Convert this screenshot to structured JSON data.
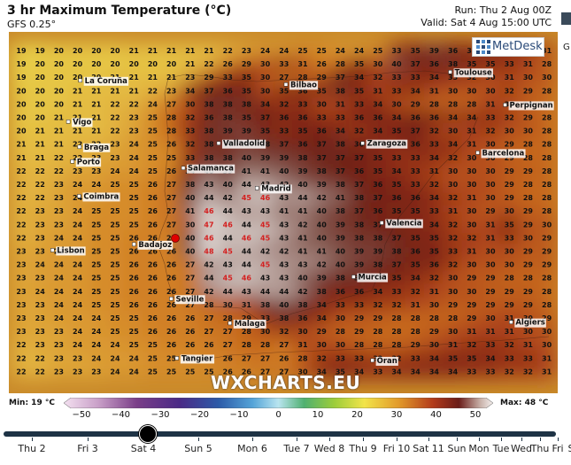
{
  "header": {
    "title": "3 hr Maximum Temperature (°C)",
    "model": "GFS 0.25°",
    "run": "Run: Thu 2 Aug 00Z",
    "valid": "Valid: Sat 4 Aug 15:00 UTC",
    "side_label": "G"
  },
  "logo": {
    "text": "MetDesk",
    "icon": "metdesk-grid-icon"
  },
  "watermark": "WXCHARTS.EU",
  "legend": {
    "min_label": "Min: 19 °C",
    "max_label": "Max: 48 °C",
    "ticks": [
      "−50",
      "−40",
      "−30",
      "−20",
      "−10",
      "0",
      "10",
      "20",
      "30",
      "40",
      "50"
    ],
    "range": [
      -50,
      50
    ]
  },
  "timeline": {
    "days": [
      "Thu 2",
      "Fri 3",
      "Sat 4",
      "Sun 5",
      "Mon 6",
      "Tue 7",
      "Wed 8",
      "Thu 9",
      "Fri 10",
      "Sat 11",
      "Sun",
      "Mon",
      "Tue",
      "Wed",
      "Thu",
      "Fri",
      "S"
    ],
    "selected": "Sat 4"
  },
  "cities": [
    {
      "name": "La Coruña",
      "lon": -8.4,
      "lat": 43.37
    },
    {
      "name": "Bilbao",
      "lon": -2.93,
      "lat": 43.26
    },
    {
      "name": "Toulouse",
      "lon": 1.44,
      "lat": 43.6
    },
    {
      "name": "Vigo",
      "lon": -8.72,
      "lat": 42.24
    },
    {
      "name": "Perpignan",
      "lon": 2.9,
      "lat": 42.7
    },
    {
      "name": "Braga",
      "lon": -8.42,
      "lat": 41.55
    },
    {
      "name": "Valladolid",
      "lon": -4.72,
      "lat": 41.65
    },
    {
      "name": "Zaragoza",
      "lon": -0.89,
      "lat": 41.65
    },
    {
      "name": "Barcelona",
      "lon": 2.17,
      "lat": 41.39
    },
    {
      "name": "Porto",
      "lon": -8.61,
      "lat": 41.15
    },
    {
      "name": "Salamanca",
      "lon": -5.66,
      "lat": 40.97
    },
    {
      "name": "Madrid",
      "lon": -3.7,
      "lat": 40.42
    },
    {
      "name": "Coimbra",
      "lon": -8.43,
      "lat": 40.2
    },
    {
      "name": "Valencia",
      "lon": -0.38,
      "lat": 39.47
    },
    {
      "name": "Badajoz",
      "lon": -6.97,
      "lat": 38.88
    },
    {
      "name": "Lisbon",
      "lon": -9.14,
      "lat": 38.72
    },
    {
      "name": "Murcia",
      "lon": -1.13,
      "lat": 37.99
    },
    {
      "name": "Seville",
      "lon": -5.98,
      "lat": 37.39
    },
    {
      "name": "Algiers",
      "lon": 3.06,
      "lat": 36.75
    },
    {
      "name": "Malaga",
      "lon": -4.42,
      "lat": 36.72
    },
    {
      "name": "Oran",
      "lon": -0.63,
      "lat": 35.7
    },
    {
      "name": "Tangier",
      "lon": -5.83,
      "lat": 35.76
    }
  ],
  "grid": {
    "rows": [
      [
        19,
        19,
        20,
        20,
        20,
        20,
        21,
        21,
        21,
        21,
        21,
        22,
        23,
        24,
        24,
        25,
        25,
        24,
        24,
        25,
        33,
        35,
        39,
        36,
        34,
        34,
        34,
        33,
        31
      ],
      [
        19,
        20,
        20,
        20,
        20,
        20,
        20,
        20,
        20,
        21,
        22,
        26,
        29,
        30,
        33,
        31,
        26,
        28,
        35,
        30,
        40,
        37,
        36,
        38,
        35,
        35,
        33,
        31,
        28
      ],
      [
        19,
        20,
        20,
        20,
        20,
        21,
        21,
        21,
        21,
        23,
        29,
        33,
        35,
        30,
        27,
        28,
        29,
        37,
        34,
        32,
        33,
        33,
        34,
        33,
        32,
        30,
        31,
        30,
        30
      ],
      [
        20,
        20,
        20,
        21,
        21,
        21,
        21,
        22,
        23,
        34,
        37,
        36,
        35,
        30,
        35,
        36,
        35,
        38,
        35,
        31,
        33,
        34,
        31,
        30,
        30,
        30,
        32,
        29,
        28
      ],
      [
        20,
        20,
        20,
        21,
        21,
        22,
        22,
        24,
        27,
        30,
        38,
        38,
        38,
        34,
        32,
        33,
        30,
        31,
        33,
        34,
        30,
        29,
        28,
        28,
        28,
        31,
        30,
        29,
        28
      ],
      [
        20,
        20,
        21,
        21,
        21,
        22,
        23,
        25,
        28,
        32,
        36,
        38,
        35,
        37,
        36,
        36,
        33,
        33,
        36,
        36,
        34,
        36,
        36,
        34,
        34,
        33,
        32,
        29,
        28
      ],
      [
        20,
        21,
        21,
        21,
        21,
        22,
        23,
        25,
        28,
        33,
        38,
        39,
        39,
        35,
        33,
        35,
        36,
        34,
        32,
        34,
        35,
        37,
        32,
        30,
        31,
        32,
        30,
        30,
        28
      ],
      [
        21,
        21,
        21,
        22,
        22,
        23,
        24,
        25,
        26,
        32,
        38,
        36,
        39,
        38,
        37,
        36,
        37,
        38,
        36,
        35,
        34,
        36,
        33,
        34,
        31,
        30,
        29,
        28,
        28
      ],
      [
        21,
        21,
        22,
        22,
        23,
        23,
        24,
        25,
        25,
        33,
        38,
        38,
        40,
        39,
        39,
        38,
        37,
        37,
        37,
        35,
        33,
        33,
        34,
        32,
        30,
        30,
        29,
        28,
        28
      ],
      [
        22,
        22,
        22,
        23,
        23,
        24,
        24,
        25,
        26,
        34,
        40,
        39,
        41,
        41,
        40,
        39,
        38,
        37,
        36,
        35,
        34,
        33,
        31,
        30,
        30,
        30,
        29,
        29,
        28
      ],
      [
        22,
        22,
        23,
        24,
        24,
        25,
        25,
        26,
        27,
        38,
        43,
        40,
        44,
        43,
        42,
        40,
        39,
        38,
        37,
        36,
        35,
        33,
        32,
        30,
        30,
        30,
        29,
        28,
        28
      ],
      [
        22,
        22,
        23,
        24,
        24,
        25,
        25,
        26,
        27,
        40,
        44,
        42,
        45,
        46,
        43,
        44,
        42,
        41,
        38,
        37,
        36,
        36,
        34,
        32,
        31,
        30,
        29,
        28,
        28
      ],
      [
        22,
        23,
        23,
        24,
        25,
        25,
        25,
        26,
        27,
        41,
        46,
        44,
        43,
        43,
        41,
        41,
        40,
        38,
        37,
        36,
        35,
        35,
        33,
        31,
        30,
        29,
        30,
        29,
        28
      ],
      [
        22,
        23,
        23,
        24,
        25,
        25,
        25,
        26,
        27,
        30,
        47,
        46,
        44,
        45,
        43,
        42,
        40,
        39,
        38,
        37,
        36,
        35,
        34,
        32,
        30,
        31,
        35,
        29,
        30
      ],
      [
        22,
        23,
        24,
        24,
        25,
        25,
        26,
        26,
        26,
        40,
        46,
        44,
        46,
        45,
        43,
        41,
        40,
        39,
        38,
        38,
        37,
        35,
        35,
        32,
        32,
        31,
        33,
        30,
        29
      ],
      [
        23,
        23,
        24,
        24,
        25,
        25,
        26,
        26,
        26,
        40,
        48,
        45,
        44,
        42,
        42,
        41,
        41,
        40,
        39,
        39,
        38,
        36,
        35,
        33,
        31,
        30,
        30,
        29,
        29
      ],
      [
        23,
        24,
        24,
        24,
        25,
        25,
        26,
        26,
        26,
        27,
        42,
        43,
        44,
        45,
        43,
        43,
        42,
        40,
        39,
        38,
        37,
        35,
        36,
        32,
        30,
        30,
        30,
        29,
        29
      ],
      [
        23,
        23,
        24,
        24,
        25,
        25,
        26,
        26,
        26,
        27,
        44,
        45,
        46,
        43,
        43,
        40,
        39,
        38,
        38,
        36,
        35,
        34,
        32,
        30,
        29,
        29,
        28,
        28,
        28
      ],
      [
        23,
        24,
        24,
        24,
        25,
        25,
        26,
        26,
        26,
        27,
        42,
        44,
        43,
        44,
        44,
        42,
        38,
        36,
        36,
        34,
        33,
        32,
        31,
        30,
        30,
        29,
        29,
        29,
        28
      ],
      [
        23,
        23,
        24,
        24,
        25,
        25,
        26,
        26,
        26,
        27,
        28,
        30,
        31,
        38,
        40,
        38,
        34,
        33,
        33,
        32,
        32,
        31,
        30,
        29,
        29,
        29,
        29,
        29,
        28
      ],
      [
        23,
        23,
        24,
        24,
        24,
        25,
        25,
        26,
        26,
        26,
        27,
        28,
        29,
        33,
        38,
        36,
        34,
        30,
        29,
        29,
        28,
        28,
        28,
        28,
        29,
        30,
        31,
        30,
        29
      ],
      [
        23,
        23,
        23,
        24,
        24,
        25,
        25,
        26,
        26,
        26,
        27,
        27,
        28,
        30,
        32,
        30,
        29,
        28,
        29,
        28,
        28,
        28,
        29,
        30,
        31,
        31,
        31,
        30,
        30
      ],
      [
        22,
        23,
        23,
        24,
        24,
        24,
        25,
        25,
        26,
        26,
        26,
        27,
        28,
        28,
        27,
        31,
        30,
        30,
        28,
        28,
        28,
        29,
        30,
        31,
        32,
        33,
        32,
        31,
        30
      ],
      [
        22,
        22,
        23,
        23,
        24,
        24,
        24,
        25,
        25,
        25,
        26,
        26,
        27,
        27,
        26,
        28,
        32,
        33,
        33,
        32,
        32,
        33,
        34,
        35,
        35,
        34,
        33,
        33,
        31
      ],
      [
        22,
        22,
        23,
        23,
        23,
        24,
        24,
        25,
        25,
        25,
        25,
        26,
        26,
        27,
        27,
        30,
        34,
        35,
        34,
        33,
        34,
        34,
        34,
        34,
        33,
        33,
        32,
        32,
        31
      ]
    ]
  }
}
